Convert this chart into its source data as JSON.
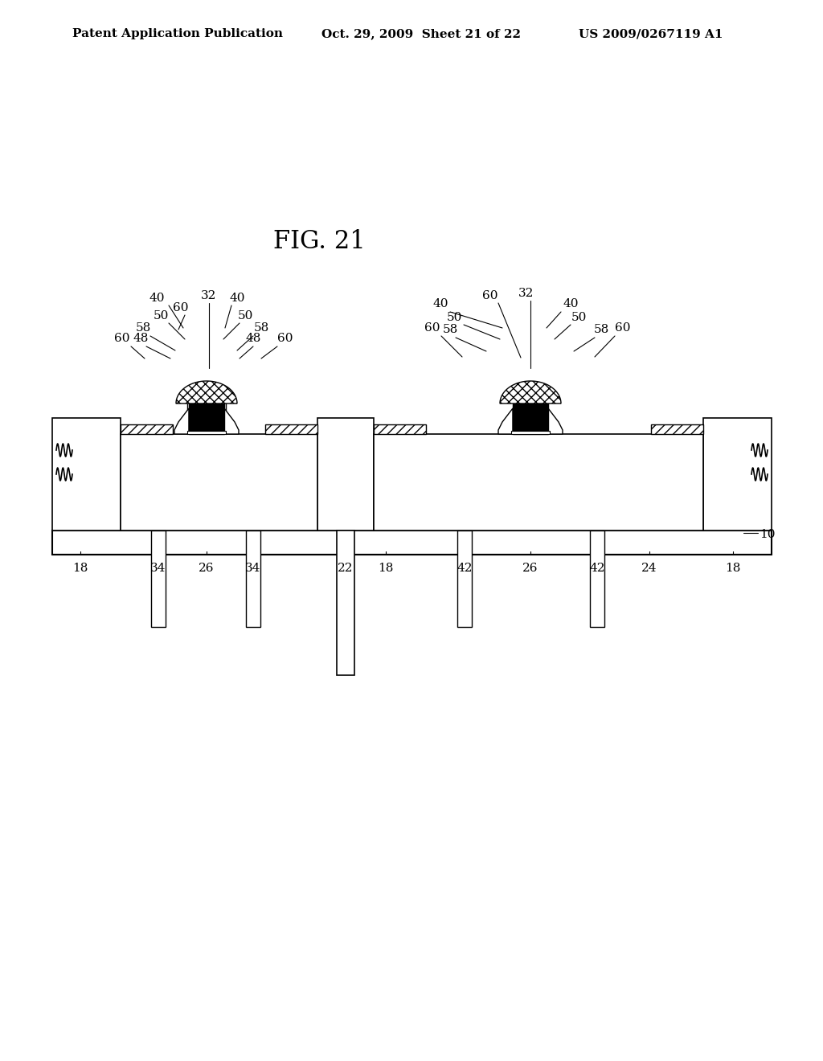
{
  "title": "FIG. 21",
  "header_left": "Patent Application Publication",
  "header_mid": "Oct. 29, 2009  Sheet 21 of 22",
  "header_right": "US 2009/0267119 A1",
  "bg_color": "#ffffff",
  "line_color": "#000000",
  "hatch_color": "#000000",
  "fig_label_fontsize": 22,
  "header_fontsize": 11,
  "annot_fontsize": 11,
  "bottom_labels": {
    "left_device": [
      "18",
      "34",
      "26",
      "34",
      "22"
    ],
    "right_device": [
      "18",
      "42",
      "26",
      "42",
      "24",
      "18"
    ]
  }
}
